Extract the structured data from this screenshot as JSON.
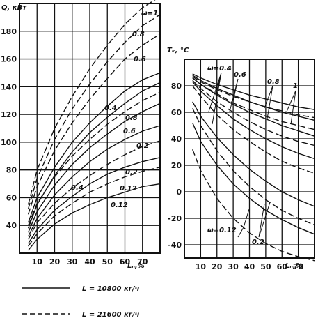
{
  "legend": {
    "solid_label": "L = 10800 кг/ч",
    "dashed_label": "L = 21600 кг/ч"
  },
  "chart_data": [
    {
      "type": "line",
      "ylabel": "Q, кВт",
      "xlabel": "Lₙ,%",
      "xticks": [
        "10",
        "20",
        "30",
        "40",
        "50",
        "60",
        "70"
      ],
      "yticks": [
        "40",
        "60",
        "80",
        "100",
        "120",
        "140",
        "160",
        "180"
      ],
      "xlim": [
        0,
        80
      ],
      "ylim": [
        20,
        200
      ],
      "grid": true,
      "annotations": [
        "ω=1",
        "0.8",
        "0.6",
        "0.4",
        "0.8",
        "0.6",
        "0.2",
        "0.4",
        "0.2",
        "0.12",
        "0.12"
      ],
      "series": [
        {
          "style": "dashed",
          "label": "ω=1",
          "x": [
            5,
            10,
            20,
            30,
            40,
            50,
            60,
            70,
            80
          ],
          "y": [
            55,
            80,
            110,
            133,
            153,
            170,
            185,
            197,
            205
          ]
        },
        {
          "style": "dashed",
          "label": "0.8",
          "x": [
            5,
            10,
            20,
            30,
            40,
            50,
            60,
            70,
            80
          ],
          "y": [
            52,
            74,
            102,
            124,
            142,
            158,
            172,
            184,
            192
          ]
        },
        {
          "style": "dashed",
          "label": "0.6",
          "x": [
            5,
            10,
            20,
            30,
            40,
            50,
            60,
            70,
            80
          ],
          "y": [
            48,
            68,
            94,
            114,
            131,
            146,
            160,
            170,
            178
          ]
        },
        {
          "style": "solid",
          "label": "ω=1",
          "x": [
            5,
            10,
            20,
            30,
            40,
            50,
            60,
            70,
            80
          ],
          "y": [
            42,
            60,
            82,
            100,
            114,
            126,
            137,
            145,
            150
          ]
        },
        {
          "style": "solid",
          "label": "0.8",
          "x": [
            5,
            10,
            20,
            30,
            40,
            50,
            60,
            70,
            80
          ],
          "y": [
            38,
            55,
            76,
            93,
            107,
            118,
            128,
            137,
            143
          ]
        },
        {
          "style": "dashed",
          "label": "0.4",
          "x": [
            5,
            10,
            20,
            30,
            40,
            50,
            60,
            70,
            80
          ],
          "y": [
            40,
            56,
            75,
            90,
            102,
            113,
            122,
            130,
            136
          ]
        },
        {
          "style": "solid",
          "label": "0.6",
          "x": [
            5,
            10,
            20,
            30,
            40,
            50,
            60,
            70,
            80
          ],
          "y": [
            35,
            50,
            69,
            84,
            96,
            106,
            115,
            122,
            128
          ]
        },
        {
          "style": "solid",
          "label": "0.4",
          "x": [
            5,
            10,
            20,
            30,
            40,
            50,
            60,
            70,
            80
          ],
          "y": [
            32,
            45,
            62,
            75,
            86,
            95,
            102,
            108,
            112
          ]
        },
        {
          "style": "dashed",
          "label": "0.2",
          "x": [
            5,
            10,
            20,
            30,
            40,
            50,
            60,
            70,
            80
          ],
          "y": [
            30,
            42,
            56,
            67,
            76,
            84,
            91,
            97,
            101
          ]
        },
        {
          "style": "solid",
          "label": "0.2",
          "x": [
            5,
            10,
            20,
            30,
            40,
            50,
            60,
            70,
            80
          ],
          "y": [
            27,
            37,
            51,
            61,
            70,
            77,
            82,
            86,
            89
          ]
        },
        {
          "style": "dashed",
          "label": "0.12",
          "x": [
            5,
            10,
            20,
            30,
            40,
            50,
            60,
            70,
            80
          ],
          "y": [
            25,
            34,
            47,
            56,
            64,
            70,
            75,
            79,
            82
          ]
        },
        {
          "style": "solid",
          "label": "0.12",
          "x": [
            5,
            10,
            20,
            30,
            40,
            50,
            60,
            70,
            80
          ],
          "y": [
            22,
            30,
            41,
            49,
            55,
            60,
            64,
            68,
            70
          ]
        }
      ]
    },
    {
      "type": "line",
      "ylabel": "Tₖ, °С",
      "xlabel": "Lₙ,%",
      "xticks": [
        "10",
        "20",
        "30",
        "40",
        "50",
        "60",
        "70"
      ],
      "yticks": [
        "80",
        "60",
        "40",
        "20",
        "0",
        "-20",
        "-40"
      ],
      "xlim": [
        0,
        80
      ],
      "ylim": [
        -50,
        100
      ],
      "grid": true,
      "annotations": [
        "ω=0.4",
        "0.6",
        "0.8",
        "1",
        "ω=0.12",
        "0.2"
      ],
      "series": [
        {
          "style": "solid",
          "label": "1",
          "x": [
            5,
            10,
            20,
            30,
            40,
            50,
            60,
            70,
            80
          ],
          "y": [
            89,
            86,
            81,
            77,
            73,
            70,
            67,
            64,
            62
          ]
        },
        {
          "style": "dashed",
          "label": "1",
          "x": [
            5,
            10,
            20,
            30,
            40,
            50,
            60,
            70,
            80
          ],
          "y": [
            87,
            83,
            77,
            72,
            68,
            64,
            61,
            58,
            56
          ]
        },
        {
          "style": "solid",
          "label": "0.8",
          "x": [
            5,
            10,
            20,
            30,
            40,
            50,
            60,
            70,
            80
          ],
          "y": [
            88,
            84,
            78,
            73,
            68,
            64,
            60,
            57,
            54
          ]
        },
        {
          "style": "dashed",
          "label": "0.8",
          "x": [
            5,
            10,
            20,
            30,
            40,
            50,
            60,
            70,
            80
          ],
          "y": [
            86,
            81,
            74,
            67,
            62,
            57,
            53,
            50,
            47
          ]
        },
        {
          "style": "solid",
          "label": "0.6",
          "x": [
            5,
            10,
            20,
            30,
            40,
            50,
            60,
            70,
            80
          ],
          "y": [
            86,
            81,
            73,
            66,
            60,
            55,
            50,
            46,
            42
          ]
        },
        {
          "style": "dashed",
          "label": "0.6",
          "x": [
            5,
            10,
            20,
            30,
            40,
            50,
            60,
            70,
            80
          ],
          "y": [
            84,
            78,
            68,
            60,
            53,
            47,
            42,
            38,
            35
          ]
        },
        {
          "style": "solid",
          "label": "0.4",
          "x": [
            5,
            10,
            20,
            30,
            40,
            50,
            60,
            70,
            80
          ],
          "y": [
            83,
            76,
            65,
            55,
            47,
            40,
            34,
            29,
            25
          ]
        },
        {
          "style": "dashed",
          "label": "0.4",
          "x": [
            5,
            10,
            20,
            30,
            40,
            50,
            60,
            70,
            80
          ],
          "y": [
            80,
            72,
            58,
            47,
            38,
            30,
            23,
            18,
            14
          ]
        },
        {
          "style": "solid",
          "label": "0.2",
          "x": [
            5,
            10,
            20,
            30,
            40,
            50,
            60,
            70,
            80
          ],
          "y": [
            68,
            57,
            41,
            28,
            17,
            8,
            0,
            -6,
            -11
          ]
        },
        {
          "style": "dashed",
          "label": "0.2",
          "x": [
            5,
            10,
            20,
            30,
            40,
            50,
            60,
            70,
            80
          ],
          "y": [
            63,
            50,
            31,
            16,
            4,
            -6,
            -14,
            -20,
            -25
          ]
        },
        {
          "style": "solid",
          "label": "0.12",
          "x": [
            5,
            10,
            20,
            30,
            40,
            50,
            60,
            70,
            80
          ],
          "y": [
            52,
            38,
            20,
            6,
            -5,
            -14,
            -21,
            -27,
            -32
          ]
        },
        {
          "style": "dashed",
          "label": "0.12",
          "x": [
            5,
            10,
            20,
            30,
            40,
            50,
            60,
            70,
            80
          ],
          "y": [
            32,
            16,
            -5,
            -20,
            -31,
            -39,
            -45,
            -49,
            -52
          ]
        }
      ]
    }
  ]
}
